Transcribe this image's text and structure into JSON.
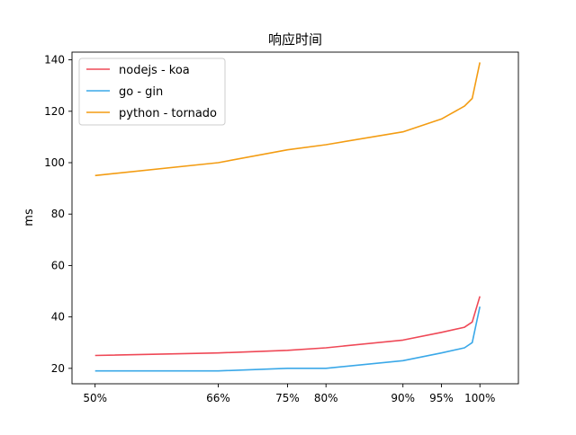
{
  "chart_data": {
    "type": "line",
    "title": "响应时间",
    "xlabel": "",
    "ylabel": "ms",
    "x": [
      50,
      66,
      75,
      80,
      90,
      95,
      98,
      99,
      100
    ],
    "x_tick_values": [
      50,
      66,
      75,
      80,
      90,
      95,
      100
    ],
    "x_tick_labels": [
      "50%",
      "66%",
      "75%",
      "80%",
      "90%",
      "95%",
      "100%"
    ],
    "xlim": [
      47,
      105
    ],
    "ylim": [
      14,
      143
    ],
    "y_ticks": [
      20,
      40,
      60,
      80,
      100,
      120,
      140
    ],
    "grid": false,
    "legend_position": "top-left",
    "series": [
      {
        "name": "nodejs - koa",
        "color": "#ef4856",
        "values": [
          25,
          26,
          27,
          28,
          31,
          34,
          36,
          38,
          48
        ]
      },
      {
        "name": "go - gin",
        "color": "#3aa8e8",
        "values": [
          19,
          19,
          20,
          20,
          23,
          26,
          28,
          30,
          44
        ]
      },
      {
        "name": "python - tornado",
        "color": "#f39c12",
        "values": [
          95,
          100,
          105,
          107,
          112,
          117,
          122,
          125,
          139
        ]
      }
    ]
  }
}
